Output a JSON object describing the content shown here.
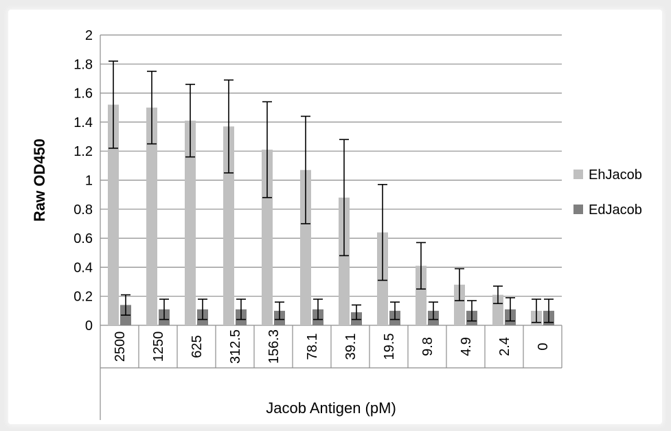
{
  "chart_data": {
    "type": "bar",
    "title": "",
    "xlabel": "Jacob Antigen (pM)",
    "ylabel": "Raw OD450",
    "ylim": [
      0,
      2
    ],
    "yticks": [
      "0",
      "0.2",
      "0.4",
      "0.6",
      "0.8",
      "1",
      "1.2",
      "1.4",
      "1.6",
      "1.8",
      "2"
    ],
    "grid": true,
    "legend_position": "right",
    "categories": [
      "2500",
      "1250",
      "625",
      "312.5",
      "156.3",
      "78.1",
      "39.1",
      "19.5",
      "9.8",
      "4.9",
      "2.4",
      "0"
    ],
    "series": [
      {
        "name": "EhJacob",
        "color": "#c0c0c0",
        "values": [
          1.52,
          1.5,
          1.41,
          1.37,
          1.21,
          1.07,
          0.88,
          0.64,
          0.41,
          0.28,
          0.21,
          0.1
        ],
        "error": [
          0.3,
          0.25,
          0.25,
          0.32,
          0.33,
          0.37,
          0.4,
          0.33,
          0.16,
          0.11,
          0.06,
          0.08
        ]
      },
      {
        "name": "EdJacob",
        "color": "#7f7f7f",
        "values": [
          0.14,
          0.11,
          0.11,
          0.11,
          0.1,
          0.11,
          0.09,
          0.1,
          0.1,
          0.1,
          0.11,
          0.1
        ],
        "error": [
          0.07,
          0.07,
          0.07,
          0.07,
          0.06,
          0.07,
          0.05,
          0.06,
          0.06,
          0.07,
          0.08,
          0.08
        ]
      }
    ]
  }
}
